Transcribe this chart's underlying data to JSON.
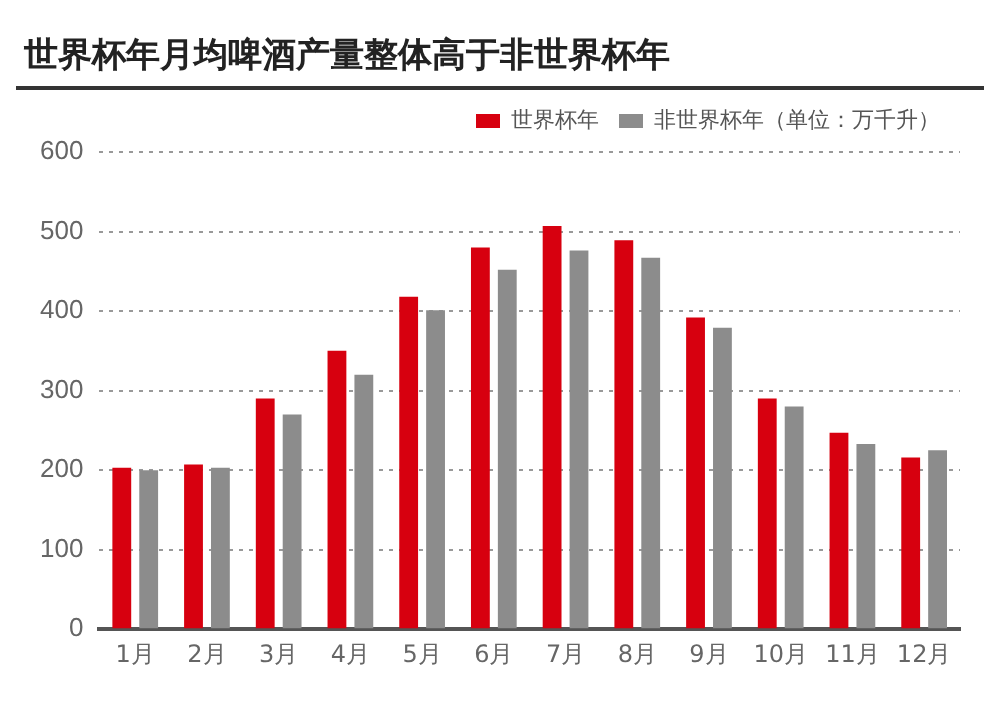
{
  "chart_data": {
    "type": "bar",
    "title": "世界杯年月均啤酒产量整体高于非世界杯年",
    "categories": [
      "1月",
      "2月",
      "3月",
      "4月",
      "5月",
      "6月",
      "7月",
      "8月",
      "9月",
      "10月",
      "11月",
      "12月"
    ],
    "series": [
      {
        "name": "世界杯年",
        "color": "#d7000f",
        "values": [
          203,
          207,
          290,
          350,
          418,
          480,
          507,
          489,
          392,
          290,
          247,
          216
        ]
      },
      {
        "name": "非世界杯年（单位：万千升）",
        "color": "#8c8c8c",
        "values": [
          200,
          203,
          270,
          320,
          401,
          452,
          476,
          467,
          379,
          280,
          233,
          225
        ]
      }
    ],
    "ylim": [
      0,
      600
    ],
    "yticks": [
      0,
      100,
      200,
      300,
      400,
      500,
      600
    ],
    "grid": "y",
    "legend": "top right"
  }
}
